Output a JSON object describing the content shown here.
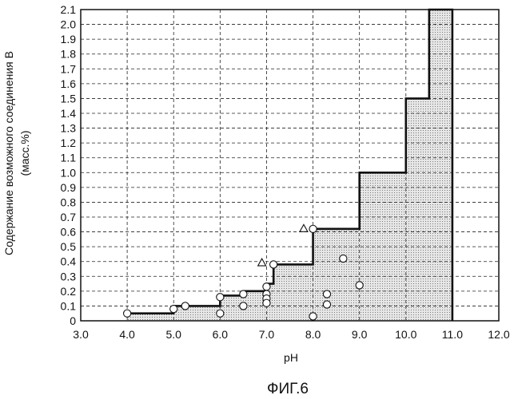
{
  "chart_data": {
    "type": "scatter",
    "caption": "ФИГ.6",
    "xlabel": "pH",
    "ylabel_line1": "Содержание возможного соединения B",
    "ylabel_line2": "(масс.%)",
    "xlim": [
      3.0,
      12.0
    ],
    "ylim": [
      0,
      2.1
    ],
    "x_ticks": [
      3.0,
      4.0,
      5.0,
      6.0,
      7.0,
      8.0,
      9.0,
      10.0,
      11.0,
      12.0
    ],
    "x_tick_labels": [
      "3.0",
      "4.0",
      "5.0",
      "6.0",
      "7.0",
      "8.0",
      "9.0",
      "10.0",
      "11.0",
      "12.0"
    ],
    "y_ticks": [
      0,
      0.1,
      0.2,
      0.3,
      0.4,
      0.5,
      0.6,
      0.7,
      0.8,
      0.9,
      1.0,
      1.1,
      1.2,
      1.3,
      1.4,
      1.5,
      1.6,
      1.7,
      1.8,
      1.9,
      2.0,
      2.1
    ],
    "y_tick_labels": [
      "0",
      "0.1",
      "0.2",
      "0.3",
      "0.4",
      "0.5",
      "0.6",
      "0.7",
      "0.8",
      "0.9",
      "1.0",
      "1.1",
      "1.2",
      "1.3",
      "1.4",
      "1.5",
      "1.6",
      "1.7",
      "1.8",
      "1.9",
      "2.0",
      "2.1"
    ],
    "grid": true,
    "boundary": [
      [
        4.0,
        0.05
      ],
      [
        5.0,
        0.05
      ],
      [
        5.0,
        0.1
      ],
      [
        6.0,
        0.1
      ],
      [
        6.0,
        0.17
      ],
      [
        6.5,
        0.17
      ],
      [
        6.5,
        0.2
      ],
      [
        7.0,
        0.2
      ],
      [
        7.0,
        0.25
      ],
      [
        7.15,
        0.25
      ],
      [
        7.15,
        0.38
      ],
      [
        8.0,
        0.38
      ],
      [
        8.0,
        0.62
      ],
      [
        9.0,
        0.62
      ],
      [
        9.0,
        1.0
      ],
      [
        10.0,
        1.0
      ],
      [
        10.0,
        1.5
      ],
      [
        10.5,
        1.5
      ],
      [
        10.5,
        2.1
      ],
      [
        11.0,
        2.1
      ],
      [
        11.0,
        0.0
      ]
    ],
    "circles": [
      [
        4.0,
        0.05
      ],
      [
        5.0,
        0.08
      ],
      [
        5.25,
        0.1
      ],
      [
        6.0,
        0.16
      ],
      [
        6.0,
        0.05
      ],
      [
        6.5,
        0.18
      ],
      [
        6.5,
        0.1
      ],
      [
        7.0,
        0.23
      ],
      [
        7.0,
        0.18
      ],
      [
        7.0,
        0.15
      ],
      [
        7.0,
        0.12
      ],
      [
        7.15,
        0.38
      ],
      [
        8.0,
        0.62
      ],
      [
        8.0,
        0.03
      ],
      [
        8.3,
        0.18
      ],
      [
        8.3,
        0.11
      ],
      [
        8.65,
        0.42
      ],
      [
        9.0,
        0.24
      ]
    ],
    "triangles": [
      [
        6.9,
        0.39
      ],
      [
        7.8,
        0.62
      ]
    ],
    "colors": {
      "grid": "#222222",
      "line": "#111111",
      "fill": "#d9d9d9"
    }
  }
}
